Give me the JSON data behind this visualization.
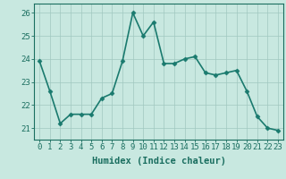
{
  "x": [
    0,
    1,
    2,
    3,
    4,
    5,
    6,
    7,
    8,
    9,
    10,
    11,
    12,
    13,
    14,
    15,
    16,
    17,
    18,
    19,
    20,
    21,
    22,
    23
  ],
  "y": [
    23.9,
    22.6,
    21.2,
    21.6,
    21.6,
    21.6,
    22.3,
    22.5,
    23.9,
    26.0,
    25.0,
    25.6,
    23.8,
    23.8,
    24.0,
    24.1,
    23.4,
    23.3,
    23.4,
    23.5,
    22.6,
    21.5,
    21.0,
    20.9
  ],
  "line_color": "#1a7a6e",
  "marker": "D",
  "marker_size": 2.5,
  "bg_color": "#c8e8e0",
  "grid_color": "#a0c8c0",
  "xlabel": "Humidex (Indice chaleur)",
  "ylim": [
    20.5,
    26.4
  ],
  "xlim": [
    -0.5,
    23.5
  ],
  "yticks": [
    21,
    22,
    23,
    24,
    25,
    26
  ],
  "xticks": [
    0,
    1,
    2,
    3,
    4,
    5,
    6,
    7,
    8,
    9,
    10,
    11,
    12,
    13,
    14,
    15,
    16,
    17,
    18,
    19,
    20,
    21,
    22,
    23
  ],
  "tick_color": "#1a6e60",
  "label_color": "#1a6e60",
  "xlabel_fontsize": 7.5,
  "tick_fontsize": 6.5,
  "linewidth": 1.2
}
